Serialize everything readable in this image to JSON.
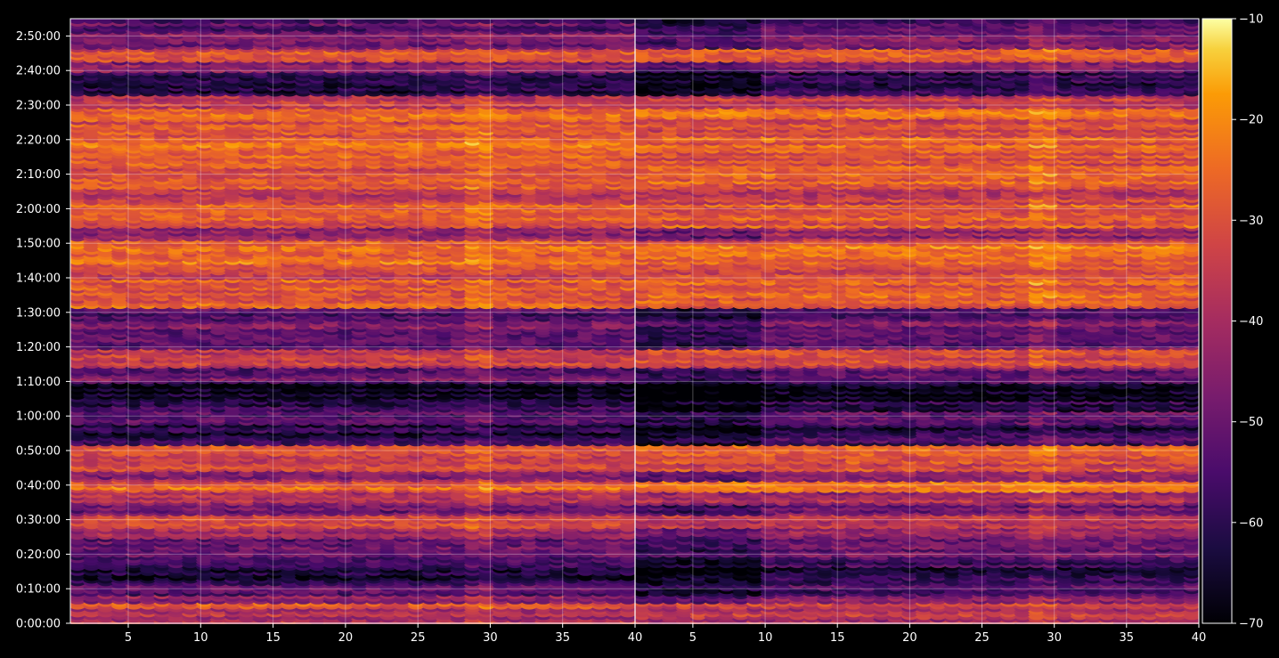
{
  "chart_data": {
    "type": "heatmap",
    "title": "",
    "colormap": "inferno",
    "background": "#000000",
    "grid": true,
    "panels": [
      {
        "name": "",
        "xlim": [
          1,
          40
        ],
        "xticks": [
          5,
          10,
          15,
          20,
          25,
          30,
          35,
          40
        ],
        "xtick_labels": [
          "5",
          "10",
          "15",
          "20",
          "25",
          "30",
          "35",
          "40"
        ]
      },
      {
        "name": "",
        "xlim": [
          1,
          40
        ],
        "xticks": [
          5,
          10,
          15,
          20,
          25,
          30,
          35,
          40
        ],
        "xtick_labels": [
          "5",
          "10",
          "15",
          "20",
          "25",
          "30",
          "35",
          "40"
        ]
      }
    ],
    "y_axis": {
      "range_seconds": [
        0,
        10500
      ],
      "ticks_seconds": [
        0,
        600,
        1200,
        1800,
        2400,
        3000,
        3600,
        4200,
        4800,
        5400,
        6000,
        6600,
        7200,
        7800,
        8400,
        9000,
        9600,
        10200
      ],
      "tick_labels": [
        "0:00:00",
        "0:10:00",
        "0:20:00",
        "0:30:00",
        "0:40:00",
        "0:50:00",
        "1:00:00",
        "1:10:00",
        "1:20:00",
        "1:30:00",
        "1:40:00",
        "1:50:00",
        "2:00:00",
        "2:10:00",
        "2:20:00",
        "2:30:00",
        "2:40:00",
        "2:50:00"
      ]
    },
    "colorbar": {
      "range": [
        -70,
        -10
      ],
      "ticks": [
        -10,
        -20,
        -30,
        -40,
        -50,
        -60,
        -70
      ],
      "tick_labels": [
        "−10",
        "−20",
        "−30",
        "−40",
        "−50",
        "−60",
        "−70"
      ]
    },
    "row_profile": {
      "description_level": "approximate mean level (dB) per time band",
      "bands_seconds": [
        [
          0,
          300,
          -38
        ],
        [
          300,
          400,
          -30
        ],
        [
          400,
          500,
          -45
        ],
        [
          500,
          700,
          -55
        ],
        [
          700,
          1000,
          -62
        ],
        [
          1000,
          1200,
          -58
        ],
        [
          1200,
          1500,
          -50
        ],
        [
          1500,
          1700,
          -42
        ],
        [
          1700,
          1900,
          -35
        ],
        [
          1900,
          2100,
          -48
        ],
        [
          2100,
          2300,
          -40
        ],
        [
          2300,
          2500,
          -26
        ],
        [
          2500,
          2700,
          -45
        ],
        [
          2700,
          3000,
          -32
        ],
        [
          3000,
          3150,
          -28
        ],
        [
          3150,
          3300,
          -58
        ],
        [
          3300,
          3500,
          -62
        ],
        [
          3500,
          3700,
          -52
        ],
        [
          3700,
          3900,
          -60
        ],
        [
          3900,
          4200,
          -68
        ],
        [
          4200,
          4500,
          -50
        ],
        [
          4500,
          4800,
          -34
        ],
        [
          4800,
          5000,
          -52
        ],
        [
          5000,
          5300,
          -48
        ],
        [
          5300,
          5500,
          -55
        ],
        [
          5500,
          6000,
          -28
        ],
        [
          6000,
          6300,
          -32
        ],
        [
          6300,
          6700,
          -26
        ],
        [
          6700,
          6900,
          -42
        ],
        [
          6900,
          7300,
          -28
        ],
        [
          7300,
          7600,
          -34
        ],
        [
          7600,
          7900,
          -27
        ],
        [
          7900,
          8200,
          -30
        ],
        [
          8200,
          8500,
          -27
        ],
        [
          8500,
          8800,
          -31
        ],
        [
          8800,
          9000,
          -26
        ],
        [
          9000,
          9200,
          -35
        ],
        [
          9200,
          9600,
          -60
        ],
        [
          9600,
          9800,
          -45
        ],
        [
          9800,
          10000,
          -30
        ],
        [
          10000,
          10300,
          -48
        ],
        [
          10300,
          10500,
          -52
        ]
      ]
    }
  }
}
